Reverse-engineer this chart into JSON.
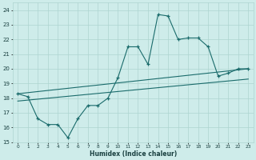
{
  "xlabel": "Humidex (Indice chaleur)",
  "bg_color": "#ceecea",
  "grid_color": "#aed4d0",
  "line_color": "#1a6b6b",
  "xlim": [
    -0.5,
    23.5
  ],
  "ylim": [
    15,
    24.5
  ],
  "yticks": [
    15,
    16,
    17,
    18,
    19,
    20,
    21,
    22,
    23,
    24
  ],
  "xticks": [
    0,
    1,
    2,
    3,
    4,
    5,
    6,
    7,
    8,
    9,
    10,
    11,
    12,
    13,
    14,
    15,
    16,
    17,
    18,
    19,
    20,
    21,
    22,
    23
  ],
  "line1_x": [
    0,
    1,
    2,
    3,
    4,
    5,
    6,
    7,
    8,
    9,
    10,
    11,
    12,
    13,
    14,
    15,
    16,
    17,
    18,
    19,
    20,
    21,
    22,
    23
  ],
  "line1_y": [
    18.3,
    18.1,
    16.6,
    16.2,
    16.2,
    15.3,
    16.6,
    17.5,
    17.5,
    18.0,
    19.4,
    21.5,
    21.5,
    20.3,
    23.7,
    23.6,
    22.0,
    22.1,
    22.1,
    21.5,
    19.5,
    19.7,
    20.0,
    20.0
  ],
  "line2_x": [
    0,
    23
  ],
  "line2_y": [
    18.3,
    20.0
  ],
  "line3_x": [
    0,
    23
  ],
  "line3_y": [
    17.8,
    19.3
  ],
  "marker_x": [
    0,
    2,
    3,
    4,
    5,
    6,
    7,
    9,
    10,
    11,
    12,
    13,
    14,
    15,
    16,
    17,
    19,
    21,
    22,
    23
  ],
  "marker_y": [
    18.3,
    16.6,
    16.2,
    16.2,
    15.3,
    16.6,
    17.5,
    18.0,
    19.4,
    21.5,
    21.5,
    20.3,
    23.7,
    23.6,
    22.0,
    22.1,
    21.5,
    19.7,
    20.0,
    20.0
  ]
}
